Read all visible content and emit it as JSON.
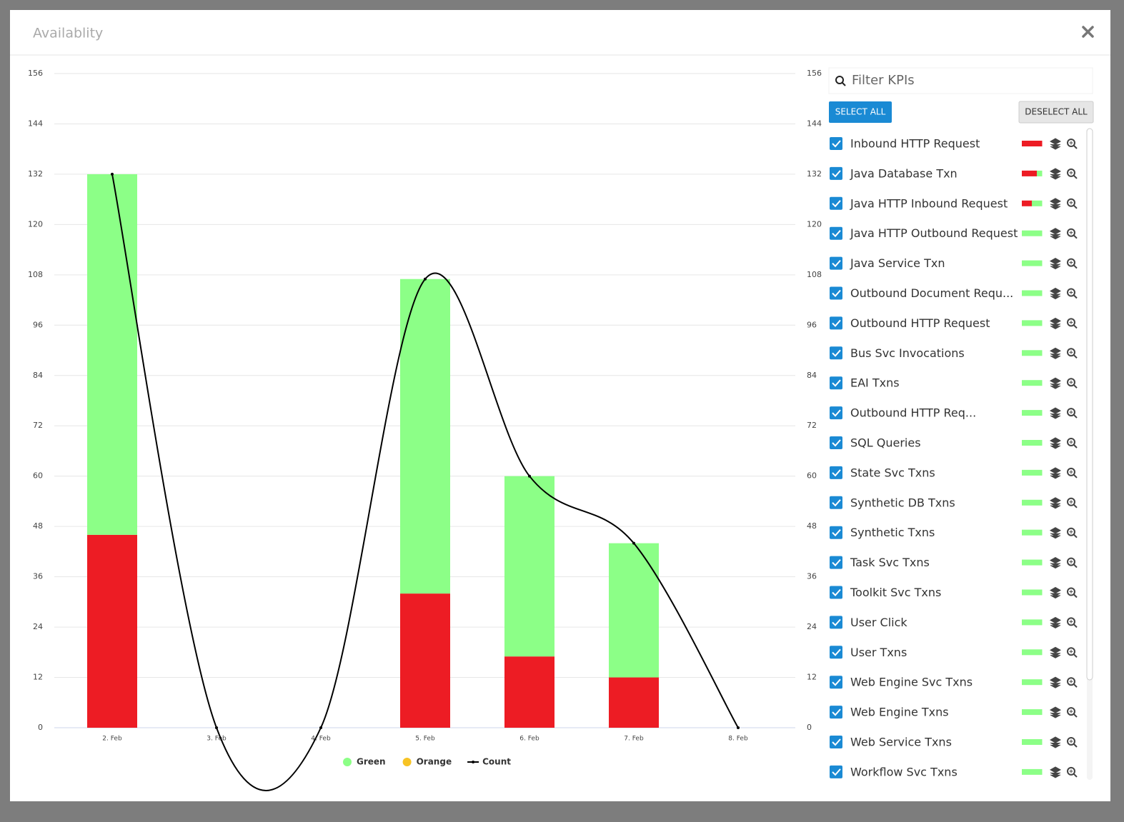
{
  "modal": {
    "title": "Availablity"
  },
  "chart_data": {
    "type": "stacked-bar-line",
    "categories": [
      "2. Feb",
      "3. Feb",
      "4. Feb",
      "5. Feb",
      "6. Feb",
      "7. Feb",
      "8. Feb"
    ],
    "series": [
      {
        "color": "#ed1c24",
        "values": [
          46,
          0,
          0,
          32,
          17,
          12,
          0
        ]
      },
      {
        "name": "Green",
        "color": "#8cff87",
        "values": [
          86,
          0,
          0,
          75,
          43,
          32,
          0
        ]
      },
      {
        "name": "Orange",
        "color": "#f7c325",
        "values": [
          0,
          0,
          0,
          0,
          0,
          0,
          0
        ]
      },
      {
        "name": "Count",
        "color": "#000000",
        "type": "line",
        "axis": "y2",
        "values": [
          132,
          0,
          0,
          107,
          60,
          44,
          0
        ]
      }
    ],
    "ylim": [
      0,
      156
    ],
    "yticks": [
      0,
      12,
      24,
      36,
      48,
      60,
      72,
      84,
      96,
      108,
      120,
      132,
      144,
      156
    ],
    "y2lim": [
      0,
      156
    ],
    "y2ticks": [
      0,
      12,
      24,
      36,
      48,
      60,
      72,
      84,
      96,
      108,
      120,
      132,
      144,
      156
    ],
    "grid": true
  },
  "panel": {
    "filter_placeholder": "Filter KPIs",
    "select_all": "SELECT ALL",
    "deselect_all": "DESELECT ALL",
    "kpis": [
      {
        "label": "Inbound HTTP Request",
        "colors": [
          "#ed1c24"
        ]
      },
      {
        "label": "Java Database Txn",
        "colors": [
          "#ed1c24",
          "#ed1c24",
          "#ed1c24",
          "#8cff87"
        ]
      },
      {
        "label": "Java HTTP Inbound Request",
        "colors": [
          "#ed1c24",
          "#8cff87"
        ]
      },
      {
        "label": "Java HTTP Outbound Request",
        "colors": [
          "#8cff87"
        ]
      },
      {
        "label": "Java Service Txn",
        "colors": [
          "#8cff87"
        ]
      },
      {
        "label": "Outbound Document Requ...",
        "colors": [
          "#8cff87"
        ]
      },
      {
        "label": "Outbound HTTP Request",
        "colors": [
          "#8cff87"
        ]
      },
      {
        "label": "Bus Svc Invocations",
        "colors": [
          "#8cff87"
        ]
      },
      {
        "label": "EAI Txns",
        "colors": [
          "#8cff87"
        ]
      },
      {
        "label": "Outbound HTTP Req...",
        "colors": [
          "#8cff87"
        ]
      },
      {
        "label": "SQL Queries",
        "colors": [
          "#8cff87"
        ]
      },
      {
        "label": "State Svc Txns",
        "colors": [
          "#8cff87"
        ]
      },
      {
        "label": "Synthetic DB Txns",
        "colors": [
          "#8cff87"
        ]
      },
      {
        "label": "Synthetic Txns",
        "colors": [
          "#8cff87"
        ]
      },
      {
        "label": "Task Svc Txns",
        "colors": [
          "#8cff87"
        ]
      },
      {
        "label": "Toolkit Svc Txns",
        "colors": [
          "#8cff87"
        ]
      },
      {
        "label": "User Click",
        "colors": [
          "#8cff87"
        ]
      },
      {
        "label": "User Txns",
        "colors": [
          "#8cff87"
        ]
      },
      {
        "label": "Web Engine Svc Txns",
        "colors": [
          "#8cff87"
        ]
      },
      {
        "label": "Web Engine Txns",
        "colors": [
          "#8cff87"
        ]
      },
      {
        "label": "Web Service Txns",
        "colors": [
          "#8cff87"
        ]
      },
      {
        "label": "Workflow Svc Txns",
        "colors": [
          "#8cff87"
        ]
      }
    ]
  }
}
